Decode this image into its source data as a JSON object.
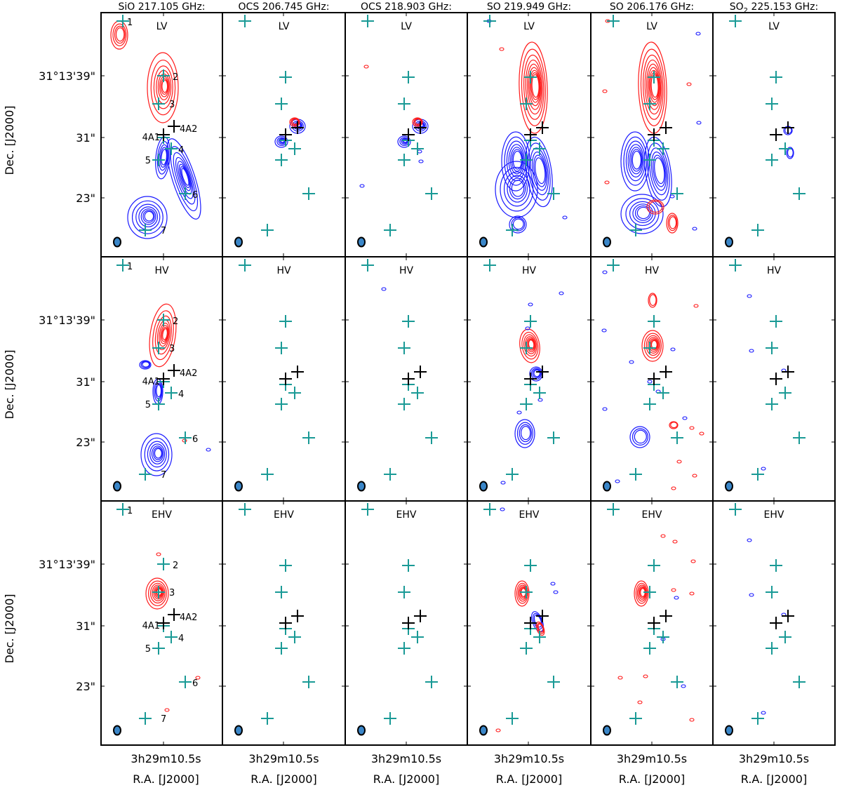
{
  "figure": {
    "columns": [
      {
        "molecule": "SiO",
        "freq": "217.105 GHz:",
        "title": "SiO 217.105 GHz:"
      },
      {
        "molecule": "OCS",
        "freq": "206.745 GHz:",
        "title": "OCS 206.745 GHz:"
      },
      {
        "molecule": "OCS",
        "freq": "218.903 GHz:",
        "title": "OCS 218.903 GHz:"
      },
      {
        "molecule": "SO",
        "freq": "219.949 GHz:",
        "title": "SO 219.949 GHz:"
      },
      {
        "molecule": "SO",
        "freq": "206.176 GHz:",
        "title": "SO 206.176 GHz:"
      },
      {
        "molecule": "SO2",
        "freq": "225.153 GHz:",
        "title_main": "SO",
        "title_sub": "2",
        "title_rest": " 225.153 GHz:"
      }
    ],
    "rows": [
      "LV",
      "HV",
      "EHV"
    ],
    "y_axis_label": "Dec. [J2000]",
    "y_ticks": [
      "31°13'39\"",
      "31\"",
      "23\""
    ],
    "x_axis_label": "R.A. [J2000]",
    "x_tick": "3h29m10.5s",
    "knot_labels": [
      "1",
      "2",
      "3",
      "4A1",
      "4A2",
      "4",
      "5",
      "6",
      "7"
    ],
    "colors": {
      "redshifted": "#ff1a1a",
      "blueshifted": "#1a1aff",
      "knot_marker": "#1a9a96",
      "source_marker": "#000000",
      "beam": "#3a86c8"
    }
  }
}
